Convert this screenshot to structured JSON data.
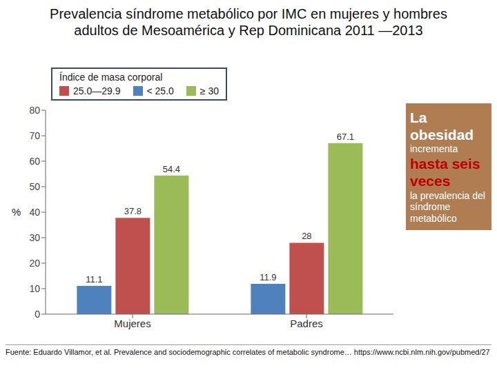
{
  "chart_data": {
    "type": "bar",
    "title": "Prevalencia síndrome metabólico por IMC en mujeres y hombres adultos de Mesoamérica y Rep Dominicana 2011 —2013",
    "categories": [
      "Mujeres",
      "Padres"
    ],
    "series": [
      {
        "name": "< 25.0",
        "color": "#4f81bd",
        "values": [
          11.1,
          11.9
        ]
      },
      {
        "name": "25.0—29.9",
        "color": "#c0504d",
        "values": [
          37.8,
          28
        ]
      },
      {
        "name": "≥ 30",
        "color": "#9bbb59",
        "values": [
          54.4,
          67.1
        ]
      }
    ],
    "ylim": [
      0,
      80
    ],
    "yticks": [
      0,
      10,
      20,
      30,
      40,
      50,
      60,
      70,
      80
    ],
    "ylabel": "%",
    "legend_title": "Índice de masa corporal",
    "legend": "top",
    "data_labels": true,
    "grid": false,
    "annotation": [
      "La obesidad",
      "incrementa",
      "hasta seis veces",
      "la prevalencia del síndrome metabólico"
    ],
    "source": "Fuente: Eduardo Villamor, et al. Prevalence and sociodemographic correlates of metabolic syndrome… https://www.ncbi.nlm.nih.gov/pubmed/27"
  }
}
